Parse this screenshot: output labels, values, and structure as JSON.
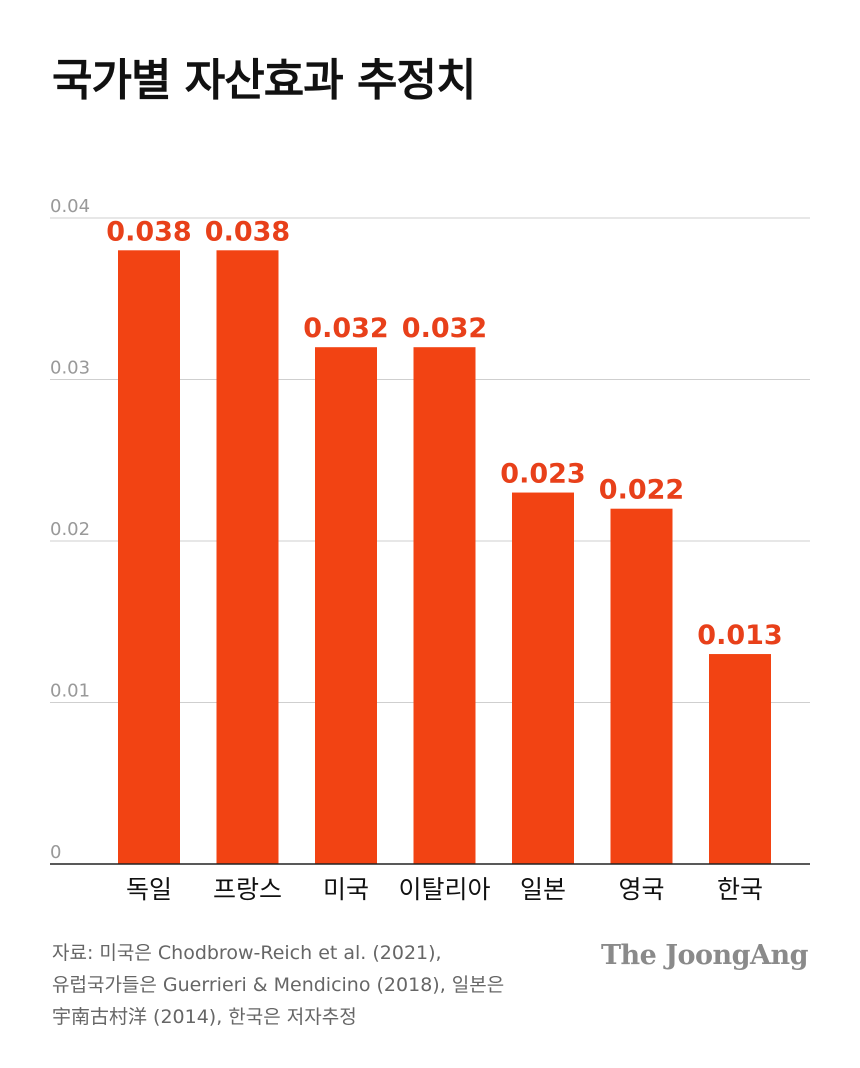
{
  "title": "국가별 자산효과 추정치",
  "chart_data": {
    "type": "bar",
    "categories": [
      "독일",
      "프랑스",
      "미국",
      "이탈리아",
      "일본",
      "영국",
      "한국"
    ],
    "values": [
      0.038,
      0.038,
      0.032,
      0.032,
      0.023,
      0.022,
      0.013
    ],
    "value_labels": [
      "0.038",
      "0.038",
      "0.032",
      "0.032",
      "0.023",
      "0.022",
      "0.013"
    ],
    "ylim": [
      0,
      0.04
    ],
    "yticks": [
      0,
      0.01,
      0.02,
      0.03,
      0.04
    ],
    "ytick_labels": [
      "0",
      "0.01",
      "0.02",
      "0.03",
      "0.04"
    ],
    "grid": true,
    "bar_color": "#f24313",
    "label_color": "#e8401a"
  },
  "source": {
    "lines": [
      "자료: 미국은 Chodbrow-Reich et al. (2021),",
      "유럽국가들은 Guerrieri & Mendicino (2018), 일본은",
      "宇南古村洋 (2014), 한국은 저자추정"
    ]
  },
  "logo": "The JoongAng"
}
